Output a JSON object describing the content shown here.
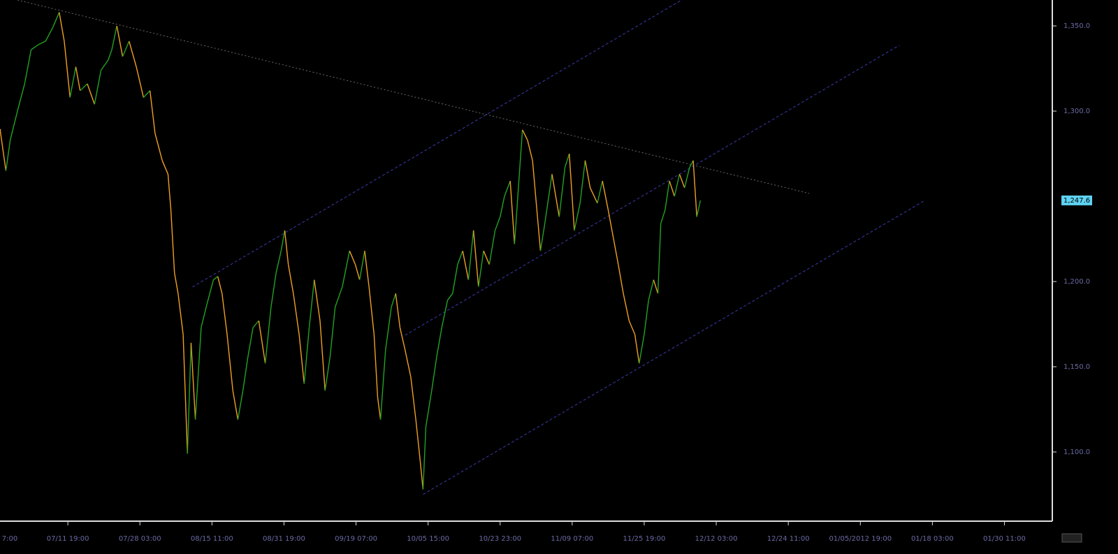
{
  "chart_data": {
    "type": "line",
    "up_color": "#22a322",
    "down_color": "#f0a020",
    "xlim": [
      0.058,
      14.655
    ],
    "ylim": [
      1059.8,
      1365.2
    ],
    "xticks": [
      {
        "value": 0,
        "label": "7:00"
      },
      {
        "value": 1,
        "label": "07/11 19:00"
      },
      {
        "value": 2,
        "label": "07/28 03:00"
      },
      {
        "value": 3,
        "label": "08/15 11:00"
      },
      {
        "value": 4,
        "label": "08/31 19:00"
      },
      {
        "value": 5,
        "label": "09/19 07:00"
      },
      {
        "value": 6,
        "label": "10/05 15:00"
      },
      {
        "value": 7,
        "label": "10/23 23:00"
      },
      {
        "value": 8,
        "label": "11/09 07:00"
      },
      {
        "value": 9,
        "label": "11/25 19:00"
      },
      {
        "value": 10,
        "label": "12/12 03:00"
      },
      {
        "value": 11,
        "label": "12/24 11:00"
      },
      {
        "value": 12,
        "label": "01/05/2012 19:00"
      },
      {
        "value": 13,
        "label": "01/18 03:00"
      },
      {
        "value": 14,
        "label": "01/30 11:00"
      }
    ],
    "yticks": [
      {
        "value": 1100,
        "label": "1,100.0"
      },
      {
        "value": 1150,
        "label": "1,150.0"
      },
      {
        "value": 1200,
        "label": "1,200.0"
      },
      {
        "value": 1300,
        "label": "1,300.0"
      },
      {
        "value": 1350,
        "label": "1,350.0"
      }
    ],
    "last_price": {
      "value": 1247.6,
      "label": "1,247.6"
    },
    "x": [
      0.06,
      0.14,
      0.2,
      0.3,
      0.4,
      0.49,
      0.59,
      0.69,
      0.79,
      0.88,
      0.95,
      1.03,
      1.11,
      1.17,
      1.27,
      1.37,
      1.46,
      1.56,
      1.61,
      1.68,
      1.76,
      1.85,
      1.95,
      2.05,
      2.14,
      2.21,
      2.31,
      2.39,
      2.43,
      2.48,
      2.53,
      2.6,
      2.66,
      2.71,
      2.77,
      2.85,
      2.92,
      3.02,
      3.08,
      3.14,
      3.21,
      3.29,
      3.36,
      3.43,
      3.5,
      3.57,
      3.65,
      3.74,
      3.82,
      3.89,
      3.96,
      4.01,
      4.06,
      4.13,
      4.21,
      4.28,
      4.35,
      4.42,
      4.5,
      4.57,
      4.64,
      4.71,
      4.81,
      4.91,
      4.99,
      5.05,
      5.12,
      5.18,
      5.25,
      5.3,
      5.34,
      5.41,
      5.49,
      5.55,
      5.61,
      5.68,
      5.76,
      5.83,
      5.89,
      5.93,
      5.97,
      6.05,
      6.12,
      6.19,
      6.27,
      6.34,
      6.41,
      6.48,
      6.56,
      6.63,
      6.7,
      6.77,
      6.85,
      6.93,
      7.0,
      7.06,
      7.14,
      7.2,
      7.26,
      7.31,
      7.38,
      7.45,
      7.51,
      7.56,
      7.62,
      7.72,
      7.82,
      7.9,
      7.96,
      8.03,
      8.11,
      8.18,
      8.25,
      8.35,
      8.42,
      8.5,
      8.57,
      8.64,
      8.71,
      8.79,
      8.87,
      8.93,
      9.0,
      9.06,
      9.13,
      9.19,
      9.23,
      9.29,
      9.35,
      9.42,
      9.49,
      9.56,
      9.63,
      9.68,
      9.73,
      9.78
    ],
    "values": [
      1289,
      1265,
      1283,
      1300,
      1316,
      1336,
      1339,
      1341,
      1349,
      1358,
      1341,
      1308,
      1326,
      1312,
      1316,
      1304,
      1324,
      1330,
      1336,
      1350,
      1332,
      1341,
      1326,
      1308,
      1312,
      1287,
      1271,
      1263,
      1242,
      1205,
      1193,
      1169,
      1099,
      1164,
      1119,
      1173,
      1185,
      1201,
      1203,
      1193,
      1169,
      1136,
      1119,
      1136,
      1156,
      1173,
      1177,
      1152,
      1185,
      1205,
      1218,
      1230,
      1210,
      1193,
      1169,
      1140,
      1173,
      1201,
      1177,
      1136,
      1156,
      1185,
      1197,
      1218,
      1210,
      1201,
      1218,
      1197,
      1169,
      1132,
      1119,
      1160,
      1185,
      1193,
      1173,
      1160,
      1144,
      1119,
      1095,
      1078,
      1115,
      1136,
      1156,
      1173,
      1189,
      1193,
      1210,
      1218,
      1201,
      1230,
      1197,
      1218,
      1210,
      1230,
      1238,
      1250,
      1259,
      1222,
      1259,
      1289,
      1283,
      1271,
      1242,
      1218,
      1234,
      1263,
      1238,
      1267,
      1275,
      1230,
      1246,
      1271,
      1255,
      1246,
      1259,
      1242,
      1226,
      1210,
      1193,
      1177,
      1169,
      1152,
      1169,
      1189,
      1201,
      1193,
      1234,
      1242,
      1259,
      1250,
      1263,
      1255,
      1267,
      1271,
      1238,
      1247.6
    ],
    "trendlines": [
      {
        "color": "#6a6a6a",
        "style": "dotted",
        "x": [
          0.3,
          11.29
        ],
        "y": [
          1365.2,
          1251.7
        ]
      },
      {
        "color": "#3a3aaa",
        "style": "dashed",
        "x": [
          2.73,
          9.52
        ],
        "y": [
          1196.8,
          1365.2
        ]
      },
      {
        "color": "#3a3aaa",
        "style": "dashed",
        "x": [
          5.68,
          12.54
        ],
        "y": [
          1168.5,
          1338.6
        ]
      },
      {
        "color": "#3a3aaa",
        "style": "dashed",
        "x": [
          5.93,
          12.88
        ],
        "y": [
          1075.1,
          1247.2
        ]
      }
    ]
  }
}
